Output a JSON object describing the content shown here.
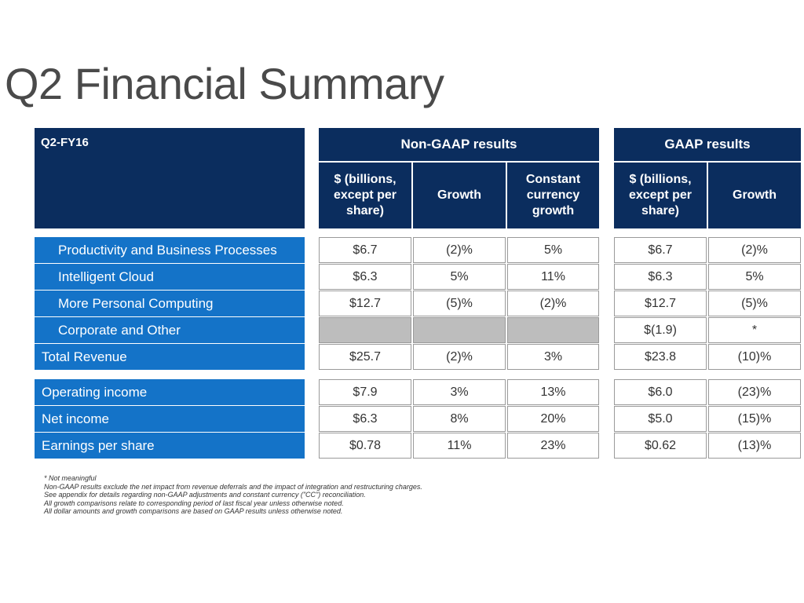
{
  "title": "Q2 Financial Summary",
  "period_label": "Q2-FY16",
  "non_gaap_header": "Non-GAAP results",
  "gaap_header": "GAAP results",
  "col_headers": {
    "ng_value": "$ (billions, except per share)",
    "ng_growth": "Growth",
    "ng_cc": "Constant currency growth",
    "g_value": "$ (billions, except per share)",
    "g_growth": "Growth"
  },
  "rows": [
    {
      "label": "Productivity and Business Processes",
      "indent": true,
      "ng": [
        "$6.7",
        "(2)%",
        "5%"
      ],
      "g": [
        "$6.7",
        "(2)%"
      ]
    },
    {
      "label": "Intelligent Cloud",
      "indent": true,
      "ng": [
        "$6.3",
        "5%",
        "11%"
      ],
      "g": [
        "$6.3",
        "5%"
      ]
    },
    {
      "label": "More Personal Computing",
      "indent": true,
      "ng": [
        "$12.7",
        "(5)%",
        "(2)%"
      ],
      "g": [
        "$12.7",
        "(5)%"
      ]
    },
    {
      "label": "Corporate and Other",
      "indent": true,
      "ng": [
        "",
        "",
        ""
      ],
      "ng_blank": true,
      "g": [
        "$(1.9)",
        "*"
      ]
    },
    {
      "label": "Total Revenue",
      "indent": false,
      "ng": [
        "$25.7",
        "(2)%",
        "3%"
      ],
      "g": [
        "$23.8",
        "(10)%"
      ]
    },
    {
      "label": "Operating income",
      "indent": false,
      "ng": [
        "$7.9",
        "3%",
        "13%"
      ],
      "g": [
        "$6.0",
        "(23)%"
      ]
    },
    {
      "label": "Net income",
      "indent": false,
      "ng": [
        "$6.3",
        "8%",
        "20%"
      ],
      "g": [
        "$5.0",
        "(15)%"
      ]
    },
    {
      "label": "Earnings per share",
      "indent": false,
      "ng": [
        "$0.78",
        "11%",
        "23%"
      ],
      "g": [
        "$0.62",
        "(13)%"
      ]
    }
  ],
  "footnotes": [
    "* Not meaningful",
    "Non-GAAP results exclude the net impact from revenue deferrals and the impact of integration and restructuring charges.",
    "See appendix for details regarding non-GAAP adjustments and constant currency (\"CC\") reconciliation.",
    "All growth comparisons relate to corresponding period of last fiscal year unless otherwise noted.",
    "All dollar amounts and growth comparisons are based on GAAP results unless otherwise noted."
  ],
  "colors": {
    "navy": "#0b2d5e",
    "row_blue": "#1473c8",
    "blank_grey": "#bdbdbd"
  }
}
